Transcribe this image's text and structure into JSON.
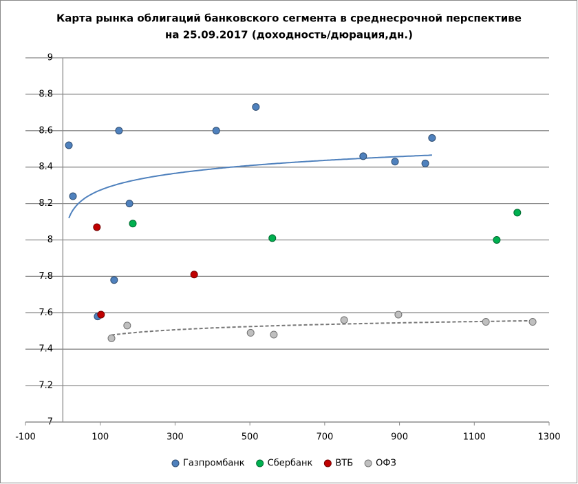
{
  "chart_data": {
    "type": "scatter",
    "title": [
      "Карта рынка облигаций банковского сегмента в среднесрочной перспективе",
      "на 25.09.2017  (доходность/дюрация,дн.)"
    ],
    "xlim": [
      -100,
      1300
    ],
    "xticks": [
      -100,
      100,
      300,
      500,
      700,
      900,
      1100,
      1300
    ],
    "ylim": [
      7,
      9
    ],
    "yticks": [
      7,
      7.2,
      7.4,
      7.6,
      7.8,
      8,
      8.2,
      8.4,
      8.6,
      8.8,
      9
    ],
    "grid": true,
    "legend": "bottom",
    "series": [
      {
        "name": "Газпромбанк",
        "color": "#4f81bd",
        "trendline": "log",
        "trendline_style": "solid",
        "x": [
          16,
          27,
          150,
          178,
          137,
          93,
          410,
          516,
          803,
          888,
          969,
          987
        ],
        "values": [
          8.52,
          8.24,
          8.6,
          8.2,
          7.78,
          7.58,
          8.6,
          8.73,
          8.46,
          8.43,
          8.42,
          8.56
        ]
      },
      {
        "name": "Сбербанк",
        "color": "#00b050",
        "x": [
          187,
          560,
          1160,
          1215
        ],
        "values": [
          8.09,
          8.01,
          8.0,
          8.15
        ]
      },
      {
        "name": "ВТБ",
        "color": "#c00000",
        "x": [
          91,
          102,
          351
        ],
        "values": [
          8.07,
          7.59,
          7.81
        ]
      },
      {
        "name": "ОФЗ",
        "color": "#bfbfbf",
        "trendline": "log",
        "trendline_style": "dashed",
        "x": [
          130,
          172,
          502,
          564,
          752,
          897,
          1131,
          1256
        ],
        "values": [
          7.46,
          7.53,
          7.49,
          7.48,
          7.56,
          7.59,
          7.55,
          7.55
        ]
      }
    ]
  }
}
